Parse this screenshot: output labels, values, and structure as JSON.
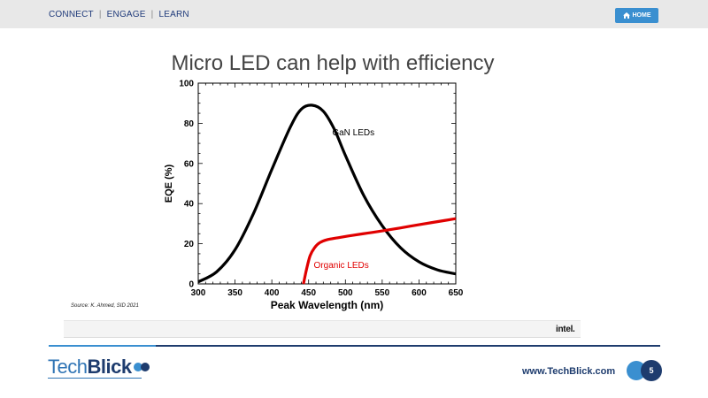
{
  "nav": {
    "items": [
      "CONNECT",
      "ENGAGE",
      "LEARN"
    ],
    "separator": "|"
  },
  "home_button": {
    "label": "HOME",
    "icon": "home-icon"
  },
  "slide": {
    "title": "Micro LED can help with efficiency",
    "source": "Source: K. Ahmed, SID 2021",
    "vendor_logo": "intel."
  },
  "footer": {
    "logo_part1": "Tech",
    "logo_part2": "Blick",
    "url": "www.TechBlick.com",
    "page_number": "5"
  },
  "colors": {
    "accent": "#3a8fd0",
    "navy": "#1e3c6e",
    "gan_curve": "#000000",
    "oled_curve": "#e00000"
  },
  "chart_data": {
    "type": "line",
    "xlabel": "Peak Wavelength (nm)",
    "ylabel": "EQE (%)",
    "xlim": [
      300,
      650
    ],
    "ylim": [
      0,
      100
    ],
    "xticks": [
      300,
      350,
      400,
      450,
      500,
      550,
      600,
      650
    ],
    "yticks": [
      0,
      20,
      40,
      60,
      80,
      100
    ],
    "grid": false,
    "series": [
      {
        "name": "GaN LEDs",
        "color": "#000000",
        "x": [
          300,
          325,
          350,
          375,
          400,
          425,
          440,
          455,
          470,
          485,
          500,
          525,
          550,
          575,
          600,
          625,
          650
        ],
        "y": [
          1,
          6,
          17,
          35,
          57,
          78,
          87,
          89,
          86,
          77,
          64,
          44,
          29,
          18,
          11,
          7,
          5
        ]
      },
      {
        "name": "Organic LEDs",
        "color": "#e00000",
        "x": [
          443,
          447,
          452,
          458,
          465,
          475,
          490,
          510,
          530,
          550,
          575,
          600,
          625,
          650
        ],
        "y": [
          0,
          7,
          14,
          18,
          20.5,
          22,
          23,
          24.2,
          25.3,
          26.4,
          27.9,
          29.5,
          31,
          32.5
        ]
      }
    ]
  }
}
